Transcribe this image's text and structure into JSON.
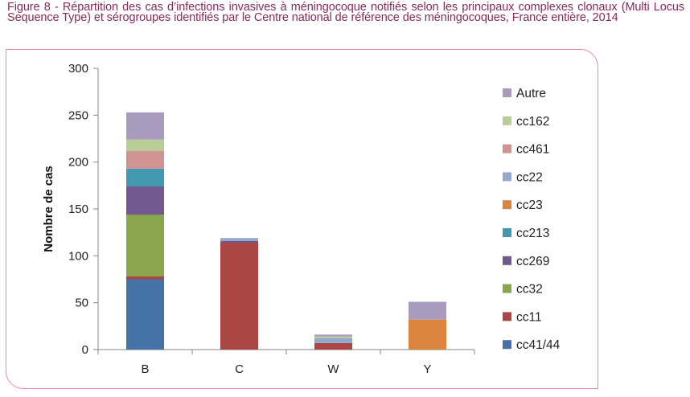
{
  "caption": "Figure 8 - Répartition des cas d’infections invasives à méningocoque notifiés selon les principaux complexes clonaux (Multi Locus Sequence Type) et sérogroupes identifiés par le Centre national de référence des méningocoques, France entière, 2014",
  "chart_data": {
    "type": "bar",
    "stacked": true,
    "title": "",
    "xlabel": "",
    "ylabel": "Nombre de cas",
    "ylim": [
      0,
      300
    ],
    "yticks": [
      0,
      50,
      100,
      150,
      200,
      250,
      300
    ],
    "grid": false,
    "legend_position": "right",
    "categories": [
      "B",
      "C",
      "W",
      "Y"
    ],
    "series": [
      {
        "name": "cc41/44",
        "color": "#4573a7",
        "values": [
          75,
          0,
          0,
          0
        ]
      },
      {
        "name": "cc11",
        "color": "#aa4643",
        "values": [
          3,
          114,
          7,
          0
        ]
      },
      {
        "name": "cc32",
        "color": "#89a54e",
        "values": [
          66,
          0,
          0,
          0
        ]
      },
      {
        "name": "cc269",
        "color": "#71588f",
        "values": [
          30,
          2,
          0,
          0
        ]
      },
      {
        "name": "cc213",
        "color": "#4198af",
        "values": [
          19,
          0,
          0,
          0
        ]
      },
      {
        "name": "cc23",
        "color": "#db843d",
        "values": [
          0,
          0,
          0,
          32
        ]
      },
      {
        "name": "cc22",
        "color": "#93a9cf",
        "values": [
          0,
          3,
          5,
          0
        ]
      },
      {
        "name": "cc461",
        "color": "#d19392",
        "values": [
          19,
          0,
          0,
          0
        ]
      },
      {
        "name": "cc162",
        "color": "#b9cd96",
        "values": [
          12,
          0,
          2,
          0
        ]
      },
      {
        "name": "Autre",
        "color": "#a99bbd",
        "values": [
          29,
          0,
          2,
          19
        ]
      }
    ]
  }
}
